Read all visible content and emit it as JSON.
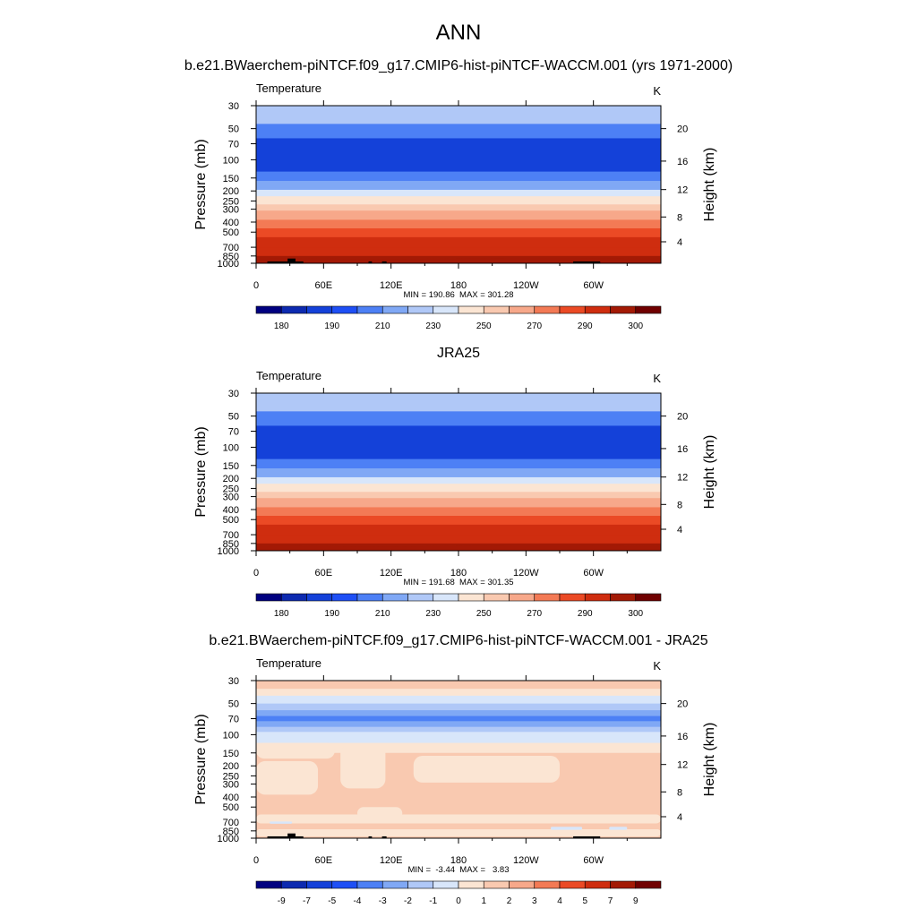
{
  "figure": {
    "title": "ANN"
  },
  "chart_data": [
    {
      "type": "heatmap",
      "panel_title": "b.e21.BWaerchem-piNTCF.f09_g17.CMIP6-hist-piNTCF-WACCM.001 (yrs 1971-2000)",
      "variable": "Temperature",
      "units": "K",
      "ylabel": "Pressure (mb)",
      "y2label": "Height (km)",
      "pressure_ticks": [
        "30",
        "50",
        "70",
        "100",
        "150",
        "200",
        "250",
        "300",
        "400",
        "500",
        "700",
        "850",
        "1000"
      ],
      "height_ticks": [
        "20",
        "16",
        "12",
        "8",
        "4"
      ],
      "longitude_ticks": [
        "0",
        "60E",
        "120E",
        "180",
        "120W",
        "60W"
      ],
      "stats": "MIN = 190.86  MAX = 301.28",
      "colorbar_labels": [
        "180",
        "190",
        "210",
        "230",
        "250",
        "270",
        "290",
        "300"
      ],
      "bands": [
        {
          "p_top": 30,
          "p_bot": 45,
          "value": 215
        },
        {
          "p_top": 45,
          "p_bot": 62,
          "value": 205
        },
        {
          "p_top": 62,
          "p_bot": 130,
          "value": 198
        },
        {
          "p_top": 130,
          "p_bot": 160,
          "value": 206
        },
        {
          "p_top": 160,
          "p_bot": 195,
          "value": 214
        },
        {
          "p_top": 195,
          "p_bot": 225,
          "value": 222
        },
        {
          "p_top": 225,
          "p_bot": 270,
          "value": 232
        },
        {
          "p_top": 270,
          "p_bot": 310,
          "value": 242
        },
        {
          "p_top": 310,
          "p_bot": 380,
          "value": 252
        },
        {
          "p_top": 380,
          "p_bot": 460,
          "value": 262
        },
        {
          "p_top": 460,
          "p_bot": 560,
          "value": 272
        },
        {
          "p_top": 560,
          "p_bot": 700,
          "value": 280
        },
        {
          "p_top": 700,
          "p_bot": 850,
          "value": 288
        },
        {
          "p_top": 850,
          "p_bot": 930,
          "value": 294
        },
        {
          "p_top": 930,
          "p_bot": 1000,
          "value": 299
        }
      ],
      "terrain_mask": [
        {
          "lon_start": 10,
          "lon_end": 42,
          "p_top": 960
        },
        {
          "lon_start": 28,
          "lon_end": 35,
          "p_top": 900
        },
        {
          "lon_start": 100,
          "lon_end": 103,
          "p_top": 960
        },
        {
          "lon_start": 112,
          "lon_end": 116,
          "p_top": 960
        },
        {
          "lon_start": 282,
          "lon_end": 306,
          "p_top": 960
        }
      ]
    },
    {
      "type": "heatmap",
      "panel_title": "JRA25",
      "variable": "Temperature",
      "units": "K",
      "ylabel": "Pressure (mb)",
      "y2label": "Height (km)",
      "pressure_ticks": [
        "30",
        "50",
        "70",
        "100",
        "150",
        "200",
        "250",
        "300",
        "400",
        "500",
        "700",
        "850",
        "1000"
      ],
      "height_ticks": [
        "20",
        "16",
        "12",
        "8",
        "4"
      ],
      "longitude_ticks": [
        "0",
        "60E",
        "120E",
        "180",
        "120W",
        "60W"
      ],
      "stats": "MIN = 191.68  MAX = 301.35",
      "colorbar_labels": [
        "180",
        "190",
        "210",
        "230",
        "250",
        "270",
        "290",
        "300"
      ],
      "bands": [
        {
          "p_top": 30,
          "p_bot": 45,
          "value": 215
        },
        {
          "p_top": 45,
          "p_bot": 62,
          "value": 205
        },
        {
          "p_top": 62,
          "p_bot": 130,
          "value": 198
        },
        {
          "p_top": 130,
          "p_bot": 160,
          "value": 206
        },
        {
          "p_top": 160,
          "p_bot": 195,
          "value": 214
        },
        {
          "p_top": 195,
          "p_bot": 225,
          "value": 222
        },
        {
          "p_top": 225,
          "p_bot": 270,
          "value": 232
        },
        {
          "p_top": 270,
          "p_bot": 310,
          "value": 242
        },
        {
          "p_top": 310,
          "p_bot": 380,
          "value": 252
        },
        {
          "p_top": 380,
          "p_bot": 460,
          "value": 262
        },
        {
          "p_top": 460,
          "p_bot": 560,
          "value": 272
        },
        {
          "p_top": 560,
          "p_bot": 700,
          "value": 280
        },
        {
          "p_top": 700,
          "p_bot": 850,
          "value": 288
        },
        {
          "p_top": 850,
          "p_bot": 930,
          "value": 294
        },
        {
          "p_top": 930,
          "p_bot": 1000,
          "value": 299
        }
      ],
      "terrain_mask": []
    },
    {
      "type": "heatmap",
      "panel_title": "b.e21.BWaerchem-piNTCF.f09_g17.CMIP6-hist-piNTCF-WACCM.001 - JRA25",
      "variable": "Temperature",
      "units": "K",
      "ylabel": "Pressure (mb)",
      "y2label": "Height (km)",
      "pressure_ticks": [
        "30",
        "50",
        "70",
        "100",
        "150",
        "200",
        "250",
        "300",
        "400",
        "500",
        "700",
        "850",
        "1000"
      ],
      "height_ticks": [
        "20",
        "16",
        "12",
        "8",
        "4"
      ],
      "longitude_ticks": [
        "0",
        "60E",
        "120E",
        "180",
        "120W",
        "60W"
      ],
      "stats": "MIN =  -3.44  MAX =   3.83",
      "colorbar_labels": [
        "-9",
        "-7",
        "-5",
        "-4",
        "-3",
        "-2",
        "-1",
        "0",
        "1",
        "2",
        "3",
        "4",
        "5",
        "7",
        "9"
      ],
      "bands": [
        {
          "p_top": 30,
          "p_bot": 36,
          "value": 1.5
        },
        {
          "p_top": 36,
          "p_bot": 42,
          "value": 0.5
        },
        {
          "p_top": 42,
          "p_bot": 50,
          "value": -0.5
        },
        {
          "p_top": 50,
          "p_bot": 58,
          "value": -1.5
        },
        {
          "p_top": 58,
          "p_bot": 66,
          "value": -2.5
        },
        {
          "p_top": 66,
          "p_bot": 74,
          "value": -3.5
        },
        {
          "p_top": 74,
          "p_bot": 84,
          "value": -2.5
        },
        {
          "p_top": 84,
          "p_bot": 94,
          "value": -1.5
        },
        {
          "p_top": 94,
          "p_bot": 120,
          "value": -0.5
        },
        {
          "p_top": 120,
          "p_bot": 150,
          "value": 0.5
        },
        {
          "p_top": 150,
          "p_bot": 1000,
          "value": 1.5
        }
      ],
      "patches": [
        {
          "lon_start": 0,
          "lon_end": 70,
          "p_top": 120,
          "p_bot": 170,
          "value": 0.5
        },
        {
          "lon_start": 75,
          "lon_end": 115,
          "p_top": 125,
          "p_bot": 330,
          "value": 0.5
        },
        {
          "lon_start": 0,
          "lon_end": 55,
          "p_top": 180,
          "p_bot": 380,
          "value": 0.5
        },
        {
          "lon_start": 140,
          "lon_end": 270,
          "p_top": 160,
          "p_bot": 290,
          "value": 0.5
        },
        {
          "lon_start": 90,
          "lon_end": 130,
          "p_top": 500,
          "p_bot": 660,
          "value": 0.5
        },
        {
          "lon_start": 0,
          "lon_end": 360,
          "p_top": 590,
          "p_bot": 720,
          "value": 0.5
        },
        {
          "lon_start": 0,
          "lon_end": 360,
          "p_top": 820,
          "p_bot": 960,
          "value": 0.5
        },
        {
          "lon_start": 12,
          "lon_end": 32,
          "p_top": 690,
          "p_bot": 725,
          "value": -0.5
        },
        {
          "lon_start": 262,
          "lon_end": 290,
          "p_top": 775,
          "p_bot": 830,
          "value": -0.5
        },
        {
          "lon_start": 314,
          "lon_end": 330,
          "p_top": 775,
          "p_bot": 830,
          "value": -0.5
        }
      ],
      "terrain_mask": [
        {
          "lon_start": 10,
          "lon_end": 42,
          "p_top": 960
        },
        {
          "lon_start": 28,
          "lon_end": 35,
          "p_top": 900
        },
        {
          "lon_start": 100,
          "lon_end": 103,
          "p_top": 960
        },
        {
          "lon_start": 112,
          "lon_end": 116,
          "p_top": 960
        },
        {
          "lon_start": 282,
          "lon_end": 306,
          "p_top": 960
        }
      ]
    }
  ],
  "colors": {
    "temperature_scale": [
      "#000080",
      "#0d2ab0",
      "#1441d9",
      "#1e4ff5",
      "#4d80f5",
      "#80a8f5",
      "#b0c8f7",
      "#d8e6fa",
      "#fbe5d3",
      "#f9c9b0",
      "#f7a88a",
      "#f37a55",
      "#eb4a25",
      "#cf2d0f",
      "#a31a05",
      "#700000"
    ],
    "diff_scale": [
      "#000080",
      "#0d2ab0",
      "#1441d9",
      "#1e4ff5",
      "#4d80f5",
      "#80a8f5",
      "#b0c8f7",
      "#d8e6fa",
      "#fbe5d3",
      "#f9c9b0",
      "#f7a88a",
      "#f37a55",
      "#eb4a25",
      "#cf2d0f",
      "#a31a05",
      "#700000"
    ],
    "temperature_levels": [
      175,
      185,
      200,
      205,
      210,
      215,
      220,
      230,
      240,
      250,
      260,
      270,
      280,
      290,
      300
    ],
    "diff_levels": [
      -9,
      -7,
      -5,
      -4,
      -3,
      -2,
      -1,
      0,
      1,
      2,
      3,
      4,
      5,
      7,
      9
    ]
  }
}
